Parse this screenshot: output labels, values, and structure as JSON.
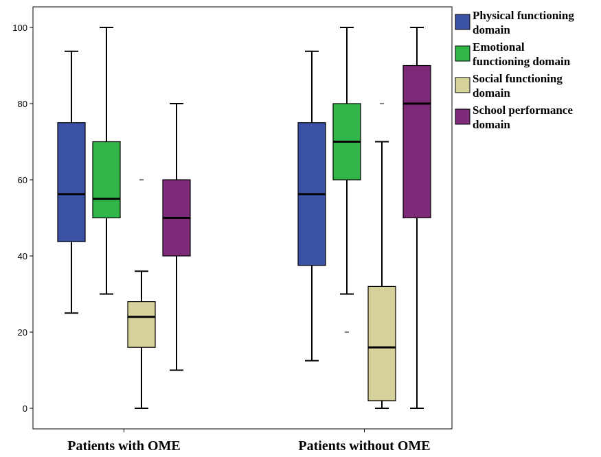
{
  "chart_data": {
    "type": "boxplot",
    "categories": [
      "Patients with OME",
      "Patients without OME"
    ],
    "ylim": [
      -5,
      105
    ],
    "y_ticks": [
      0,
      20,
      40,
      60,
      80,
      100
    ],
    "y_tick_labels": [
      "0",
      "20",
      "40",
      "60",
      "80",
      "100"
    ],
    "legend_position": "right",
    "grid": false,
    "series": [
      {
        "legend_lines": [
          "Physical functioning",
          "domain"
        ],
        "color": "#3c52a6",
        "boxes": [
          {
            "min": 25,
            "q1": 43.75,
            "median": 56.25,
            "q3": 75,
            "max": 93.75,
            "outliers": []
          },
          {
            "min": 12.5,
            "q1": 37.5,
            "median": 56.25,
            "q3": 75,
            "max": 93.75,
            "outliers": []
          }
        ]
      },
      {
        "legend_lines": [
          "Emotional",
          "functioning domain"
        ],
        "color": "#32b64a",
        "boxes": [
          {
            "min": 30,
            "q1": 50,
            "median": 55,
            "q3": 70,
            "max": 100,
            "outliers": []
          },
          {
            "min": 30,
            "q1": 60,
            "median": 70,
            "q3": 80,
            "max": 100,
            "outliers": [
              20
            ]
          }
        ]
      },
      {
        "legend_lines": [
          "Social functioning",
          "domain"
        ],
        "color": "#d6d09a",
        "boxes": [
          {
            "min": 0,
            "q1": 16,
            "median": 24,
            "q3": 28,
            "max": 36,
            "outliers": [
              60
            ]
          },
          {
            "min": 0,
            "q1": 2,
            "median": 16,
            "q3": 32,
            "max": 70,
            "outliers": [
              80
            ]
          }
        ]
      },
      {
        "legend_lines": [
          "School performance",
          "domain"
        ],
        "color": "#7d2a78",
        "boxes": [
          {
            "min": 10,
            "q1": 40,
            "median": 50,
            "q3": 60,
            "max": 80,
            "outliers": []
          },
          {
            "min": 0,
            "q1": 50,
            "median": 80,
            "q3": 90,
            "max": 100,
            "outliers": []
          }
        ]
      }
    ]
  }
}
